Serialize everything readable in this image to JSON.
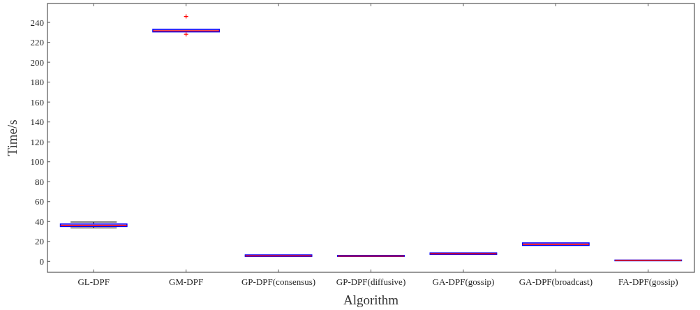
{
  "chart_data": {
    "type": "box",
    "xlabel": "Algorithm",
    "ylabel": "Time/s",
    "categories": [
      "GL-DPF",
      "GM-DPF",
      "GP-DPF(consensus)",
      "GP-DPF(diffusive)",
      "GA-DPF(gossip)",
      "GA-DPF(broadcast)",
      "FA-DPF(gossip)"
    ],
    "color": "#0000ff",
    "boxes": [
      {
        "low": 33.5,
        "q1": 35,
        "median": 36,
        "q3": 37.5,
        "high": 39.5
      },
      {
        "low": 230.5,
        "q1": 230.5,
        "median": 231.5,
        "q3": 233,
        "high": 233,
        "outliers": [
          246,
          228
        ]
      },
      {
        "low": 5,
        "q1": 5,
        "median": 5.5,
        "q3": 6.5,
        "high": 6.5
      },
      {
        "low": 5,
        "q1": 5,
        "median": 5.3,
        "q3": 6,
        "high": 6
      },
      {
        "low": 7,
        "q1": 7,
        "median": 7.5,
        "q3": 8.5,
        "high": 8.5
      },
      {
        "low": 16,
        "q1": 16,
        "median": 17,
        "q3": 18.5,
        "high": 18.5
      },
      {
        "low": 0.8,
        "q1": 0.8,
        "median": 1,
        "q3": 1.3,
        "high": 1.3
      }
    ],
    "ylim": [
      -11,
      259
    ],
    "yticks": [
      0,
      20,
      40,
      60,
      80,
      100,
      120,
      140,
      160,
      180,
      200,
      220,
      240
    ],
    "grid": false
  }
}
